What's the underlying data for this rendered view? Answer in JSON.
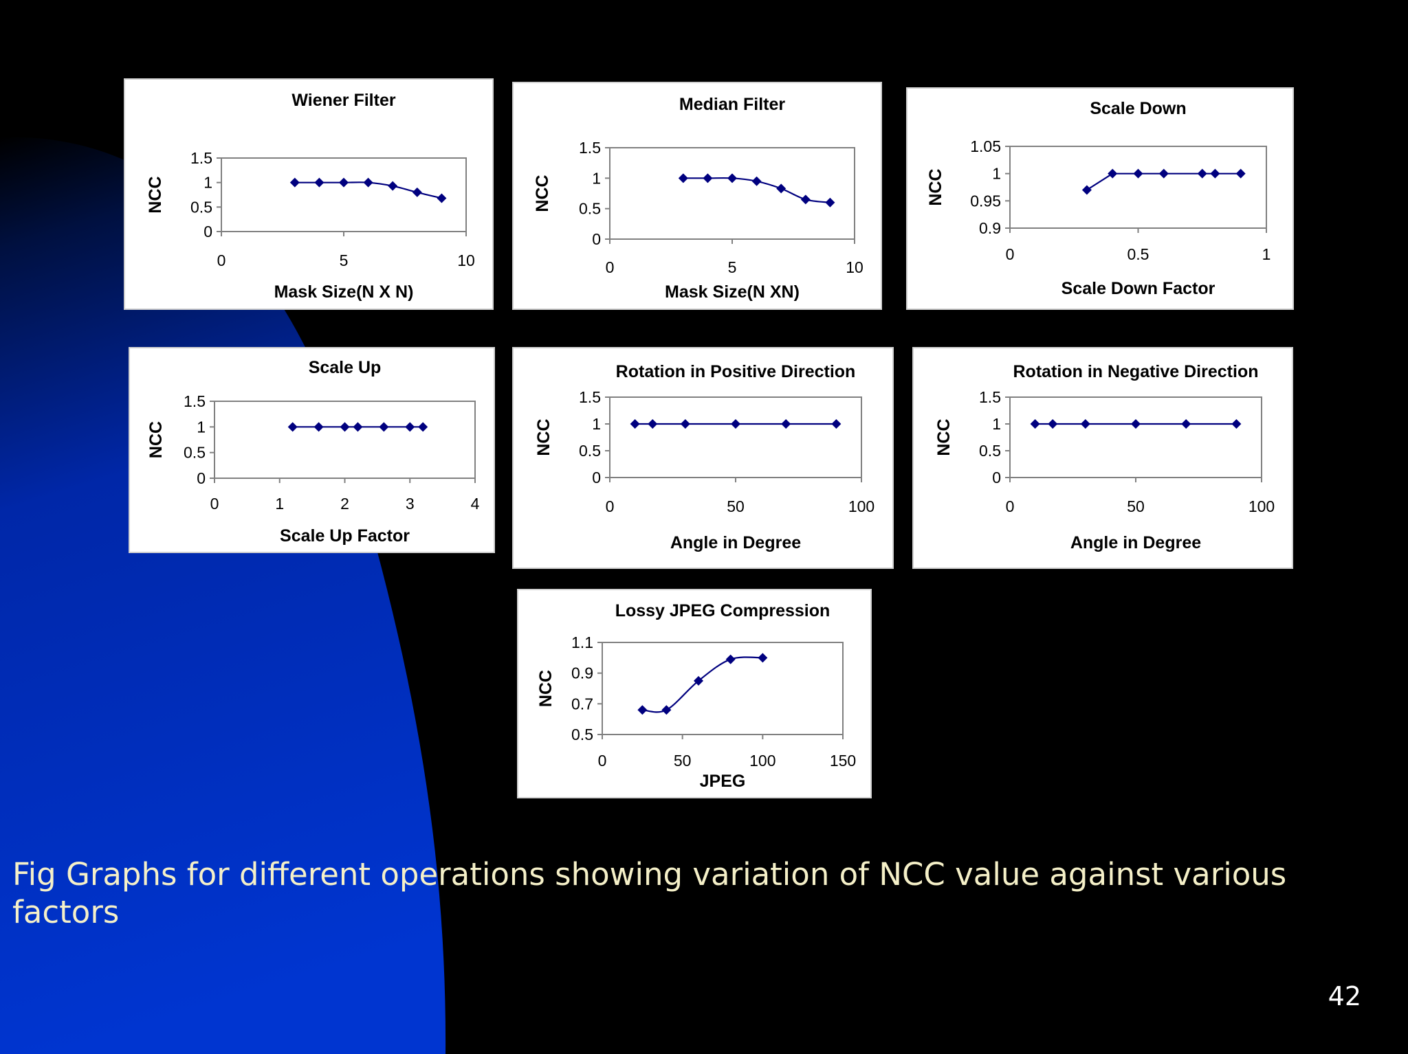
{
  "slide": {
    "caption": "Fig Graphs for different operations showing variation of NCC value against various factors",
    "page_number": "42"
  },
  "colors": {
    "background": "#000000",
    "shape": "#0033cc",
    "series": "#00007f",
    "caption_text": "#f5f0c8"
  },
  "chart_data": [
    {
      "id": "wiener",
      "type": "line",
      "title": "Wiener Filter",
      "xlabel": "Mask Size(N X N)",
      "ylabel": "NCC",
      "xlim": [
        0,
        10
      ],
      "ylim": [
        0,
        1.5
      ],
      "xticks": [
        0,
        5,
        10
      ],
      "yticks": [
        0,
        0.5,
        1,
        1.5
      ],
      "xtick_labels": [
        "0",
        "5",
        "10"
      ],
      "ytick_labels": [
        "0",
        "0.5",
        "1",
        "1.5"
      ],
      "grid": false,
      "smooth": true,
      "marker": "diamond",
      "x": [
        3,
        4,
        5,
        6,
        7,
        8,
        9
      ],
      "y": [
        1.0,
        1.0,
        1.0,
        1.0,
        0.93,
        0.8,
        0.68
      ]
    },
    {
      "id": "median",
      "type": "line",
      "title": "Median Filter",
      "xlabel": "Mask Size(N XN)",
      "ylabel": "NCC",
      "xlim": [
        0,
        10
      ],
      "ylim": [
        0,
        1.5
      ],
      "xticks": [
        0,
        5,
        10
      ],
      "yticks": [
        0,
        0.5,
        1,
        1.5
      ],
      "xtick_labels": [
        "0",
        "5",
        "10"
      ],
      "ytick_labels": [
        "0",
        "0.5",
        "1",
        "1.5"
      ],
      "grid": false,
      "smooth": true,
      "marker": "diamond",
      "x": [
        3,
        4,
        5,
        6,
        7,
        8,
        9
      ],
      "y": [
        1.0,
        1.0,
        1.0,
        0.95,
        0.83,
        0.65,
        0.6
      ]
    },
    {
      "id": "scale-down",
      "type": "line",
      "title": "Scale Down",
      "xlabel": "Scale Down Factor",
      "ylabel": "NCC",
      "xlim": [
        0,
        1
      ],
      "ylim": [
        0.9,
        1.05
      ],
      "xticks": [
        0,
        0.5,
        1
      ],
      "yticks": [
        0.9,
        0.95,
        1,
        1.05
      ],
      "xtick_labels": [
        "0",
        "0.5",
        "1"
      ],
      "ytick_labels": [
        "0.9",
        "0.95",
        "1",
        "1.05"
      ],
      "grid": false,
      "smooth": false,
      "marker": "diamond",
      "x": [
        0.3,
        0.4,
        0.5,
        0.6,
        0.75,
        0.8,
        0.9
      ],
      "y": [
        0.97,
        1.0,
        1.0,
        1.0,
        1.0,
        1.0,
        1.0
      ]
    },
    {
      "id": "scale-up",
      "type": "line",
      "title": "Scale Up",
      "xlabel": "Scale Up Factor",
      "ylabel": "NCC",
      "xlim": [
        0,
        4
      ],
      "ylim": [
        0,
        1.5
      ],
      "xticks": [
        0,
        1,
        2,
        3,
        4
      ],
      "yticks": [
        0,
        0.5,
        1,
        1.5
      ],
      "xtick_labels": [
        "0",
        "1",
        "2",
        "3",
        "4"
      ],
      "ytick_labels": [
        "0",
        "0.5",
        "1",
        "1.5"
      ],
      "grid": false,
      "smooth": false,
      "marker": "diamond",
      "x": [
        1.2,
        1.6,
        2.0,
        2.2,
        2.6,
        3.0,
        3.2
      ],
      "y": [
        1.0,
        1.0,
        1.0,
        1.0,
        1.0,
        1.0,
        1.0
      ]
    },
    {
      "id": "rotation-positive",
      "type": "line",
      "title": "Rotation in Positive Direction",
      "xlabel": "Angle in  Degree",
      "ylabel": "NCC",
      "xlim": [
        0,
        100
      ],
      "ylim": [
        0,
        1.5
      ],
      "xticks": [
        0,
        50,
        100
      ],
      "yticks": [
        0,
        0.5,
        1,
        1.5
      ],
      "xtick_labels": [
        "0",
        "50",
        "100"
      ],
      "ytick_labels": [
        "0",
        "0.5",
        "1",
        "1.5"
      ],
      "grid": false,
      "smooth": false,
      "marker": "diamond",
      "x": [
        10,
        17,
        30,
        50,
        70,
        90
      ],
      "y": [
        1.0,
        1.0,
        1.0,
        1.0,
        1.0,
        1.0
      ]
    },
    {
      "id": "rotation-negative",
      "type": "line",
      "title": "Rotation in Negative Direction",
      "xlabel": "Angle in  Degree",
      "ylabel": "NCC",
      "xlim": [
        0,
        100
      ],
      "ylim": [
        0,
        1.5
      ],
      "xticks": [
        0,
        50,
        100
      ],
      "yticks": [
        0,
        0.5,
        1,
        1.5
      ],
      "xtick_labels": [
        "0",
        "50",
        "100"
      ],
      "ytick_labels": [
        "0",
        "0.5",
        "1",
        "1.5"
      ],
      "grid": false,
      "smooth": false,
      "marker": "diamond",
      "x": [
        10,
        17,
        30,
        50,
        70,
        90
      ],
      "y": [
        1.0,
        1.0,
        1.0,
        1.0,
        1.0,
        1.0
      ]
    },
    {
      "id": "jpeg",
      "type": "line",
      "title": "Lossy JPEG Compression",
      "xlabel": "JPEG",
      "ylabel": "NCC",
      "xlim": [
        0,
        150
      ],
      "ylim": [
        0.5,
        1.1
      ],
      "xticks": [
        0,
        50,
        100,
        150
      ],
      "yticks": [
        0.5,
        0.7,
        0.9,
        1.1
      ],
      "xtick_labels": [
        "0",
        "50",
        "100",
        "150"
      ],
      "ytick_labels": [
        "0.5",
        "0.7",
        "0.9",
        "1.1"
      ],
      "grid": false,
      "smooth": true,
      "marker": "diamond",
      "x": [
        25,
        40,
        60,
        80,
        100
      ],
      "y": [
        0.66,
        0.66,
        0.85,
        0.99,
        1.0
      ]
    }
  ]
}
